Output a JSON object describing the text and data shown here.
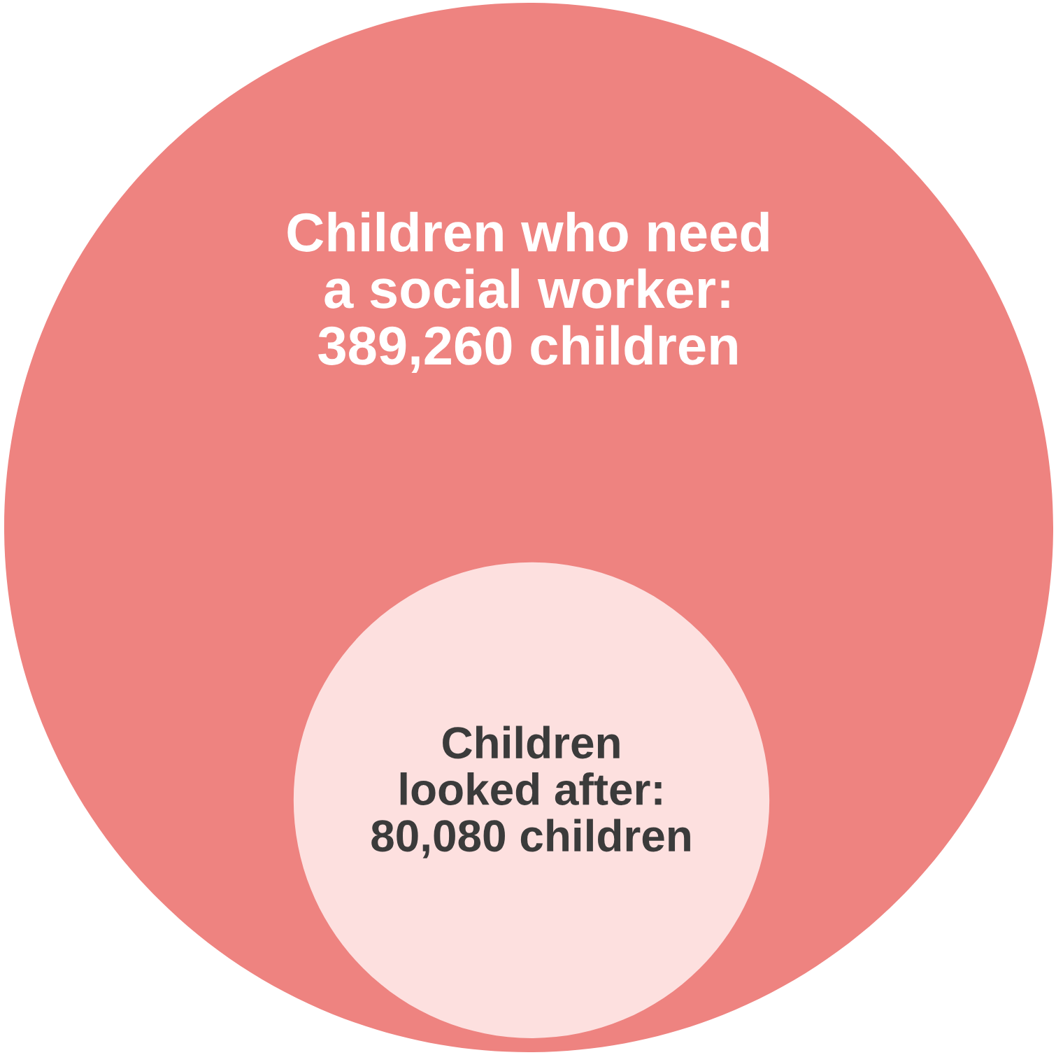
{
  "chart_data": {
    "type": "other",
    "value_labels": [
      "Children who need\na social worker:\n389,260 children",
      "Children\nlooked after:\n80,080 children"
    ],
    "values": [
      389260,
      80080
    ],
    "colors": [
      "#ee8380",
      "#fde0df"
    ]
  }
}
